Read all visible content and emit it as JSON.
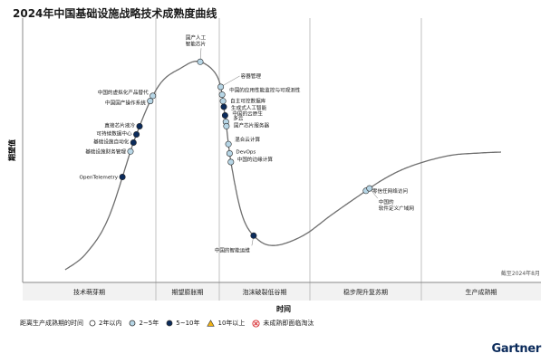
{
  "chart_data": {
    "type": "hype-cycle",
    "title": "2024年中国基础设施战略技术成熟度曲线",
    "ylabel": "期望值",
    "xlabel": "时间",
    "note": "截至2024年8月",
    "phases": [
      "技术萌芽期",
      "期望膨胀期",
      "泡沫破裂低谷期",
      "稳步爬升复苏期",
      "生产成熟期"
    ],
    "legend": {
      "title": "距离生产成熟期的时间",
      "items": [
        {
          "label": "2年以内",
          "key": "lt2",
          "color": "#ffffff"
        },
        {
          "label": "2~5年",
          "key": "2to5",
          "color": "#b7d6e6"
        },
        {
          "label": "5~10年",
          "key": "5to10",
          "color": "#0b2b5b"
        },
        {
          "label": "10年以上",
          "key": "gt10",
          "color": "#f2b417"
        },
        {
          "label": "未成熟即面临淘汰",
          "key": "obsolete",
          "color": "#d7262b"
        }
      ]
    },
    "technologies": [
      {
        "name": "OpenTelemetry",
        "t": 0.155,
        "cat": "5to10"
      },
      {
        "name": "基础设施财务管理",
        "t": 0.192,
        "cat": "2to5"
      },
      {
        "name": "基础设施自动化",
        "t": 0.205,
        "cat": "5to10"
      },
      {
        "name": "可持续数据中心",
        "t": 0.217,
        "cat": "5to10"
      },
      {
        "name": "直接芯片液冷",
        "t": 0.229,
        "cat": "5to10"
      },
      {
        "name": "中国国产操作系统",
        "t": 0.267,
        "cat": "2to5"
      },
      {
        "name": "中国的虚拟化产品替代",
        "t": 0.275,
        "cat": "2to5"
      },
      {
        "name": "国产人工智能芯片",
        "t": 0.36,
        "cat": "2to5"
      },
      {
        "name": "容器管理",
        "t": 0.407,
        "cat": "2to5"
      },
      {
        "name": "中国的应用性能监控与可观测性",
        "t": 0.418,
        "cat": "2to5"
      },
      {
        "name": "自主可控数据库",
        "t": 0.427,
        "cat": "2to5"
      },
      {
        "name": "生成式人工智能",
        "t": 0.435,
        "cat": "5to10"
      },
      {
        "name": "中国的云原生",
        "t": 0.447,
        "cat": "5to10"
      },
      {
        "name": "多云",
        "t": 0.456,
        "cat": "2to5"
      },
      {
        "name": "国产芯片服务器",
        "t": 0.462,
        "cat": "2to5"
      },
      {
        "name": "混合云计算",
        "t": 0.487,
        "cat": "2to5"
      },
      {
        "name": "DevOps",
        "t": 0.5,
        "cat": "2to5"
      },
      {
        "name": "中国的边缘计算",
        "t": 0.512,
        "cat": "2to5"
      },
      {
        "name": "中国的智能运维",
        "t": 0.62,
        "cat": "5to10"
      },
      {
        "name": "零信任网络访问",
        "t": 0.802,
        "cat": "2to5"
      },
      {
        "name": "中国的软件定义广域网",
        "t": 0.808,
        "cat": "2to5"
      }
    ]
  },
  "brand": "Gartner"
}
